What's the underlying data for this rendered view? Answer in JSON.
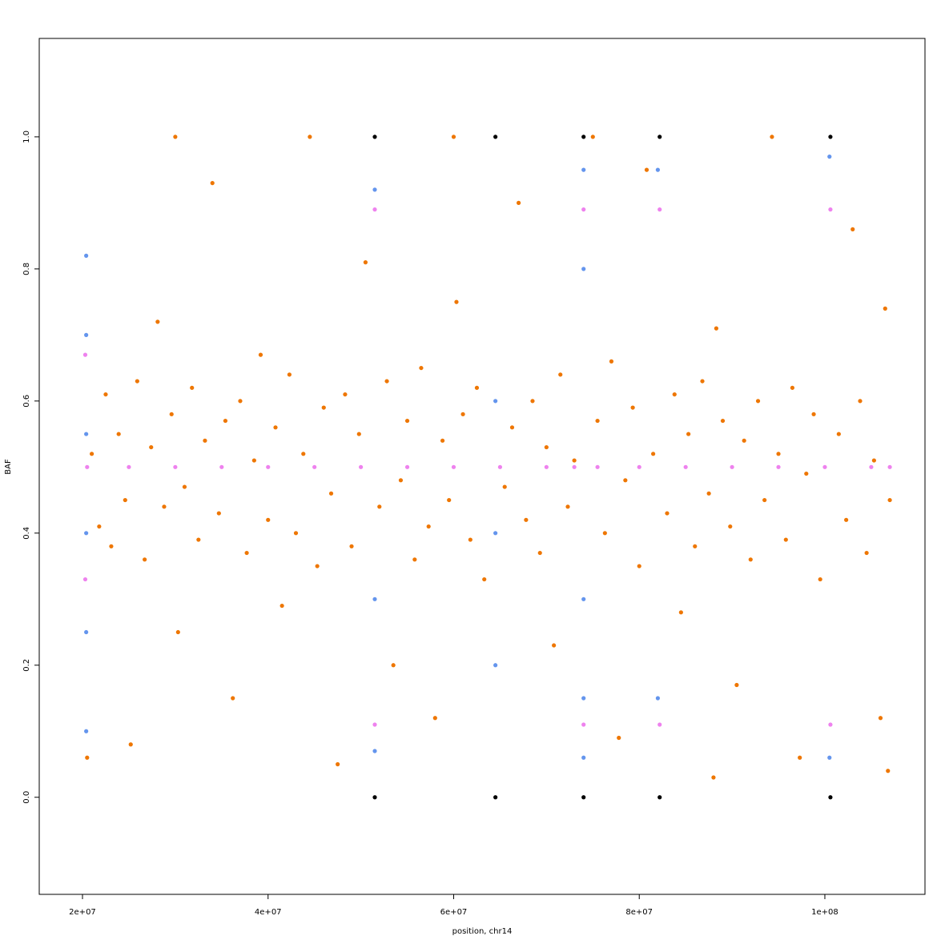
{
  "chart_data": {
    "type": "scatter",
    "x_label": "position, chr14",
    "y_label": "BAF",
    "xlim": [
      15340000,
      110790000
    ],
    "ylim": [
      -0.147,
      1.149
    ],
    "xticks": [
      {
        "value": 20000000,
        "label": "2e+07"
      },
      {
        "value": 40000000,
        "label": "4e+07"
      },
      {
        "value": 60000000,
        "label": "6e+07"
      },
      {
        "value": 80000000,
        "label": "8e+07"
      },
      {
        "value": 100000000,
        "label": "1e+08"
      }
    ],
    "yticks": [
      {
        "value": 0,
        "label": "0.0"
      },
      0.2,
      0.4,
      0.6,
      0.8,
      {
        "value": 1,
        "label": "1.0"
      }
    ],
    "series": [
      {
        "color": "#ee7600",
        "x": [
          21000000,
          21800000,
          22500000,
          23100000,
          23900000,
          24600000,
          25200000,
          25900000,
          26700000,
          27400000,
          28100000,
          28800000,
          29600000,
          30300000,
          31000000,
          31800000,
          32500000,
          33200000,
          34000000,
          34700000,
          35400000,
          36200000,
          37000000,
          37700000,
          38500000,
          39200000,
          40000000,
          40800000,
          41500000,
          42300000,
          43000000,
          43800000,
          44500000,
          45300000,
          46000000,
          46800000,
          47500000,
          48300000,
          49000000,
          49800000,
          50500000,
          52000000,
          52800000,
          53500000,
          54300000,
          55000000,
          55800000,
          56500000,
          57300000,
          58000000,
          58800000,
          59500000,
          60300000,
          61000000,
          61800000,
          62500000,
          63300000,
          65500000,
          66300000,
          67000000,
          67800000,
          68500000,
          69300000,
          70000000,
          70800000,
          71500000,
          72300000,
          73000000,
          75500000,
          76300000,
          77000000,
          77800000,
          78500000,
          79300000,
          80000000,
          80800000,
          81500000,
          83000000,
          83800000,
          84500000,
          85300000,
          86000000,
          86800000,
          87500000,
          88300000,
          89000000,
          89800000,
          90500000,
          91300000,
          92000000,
          92800000,
          93500000,
          94300000,
          95000000,
          95800000,
          96500000,
          97300000,
          98000000,
          98800000,
          99500000,
          101500000,
          102300000,
          103000000,
          103800000,
          104500000,
          105300000,
          106000000,
          106500000,
          106800000,
          107000000,
          20500000,
          30000000,
          60000000,
          75000000,
          88000000
        ],
        "values": [
          0.52,
          0.41,
          0.61,
          0.38,
          0.55,
          0.45,
          0.08,
          0.63,
          0.36,
          0.53,
          0.72,
          0.44,
          0.58,
          0.25,
          0.47,
          0.62,
          0.39,
          0.54,
          0.93,
          0.43,
          0.57,
          0.15,
          0.6,
          0.37,
          0.51,
          0.67,
          0.42,
          0.56,
          0.29,
          0.64,
          0.4,
          0.52,
          1,
          0.35,
          0.59,
          0.46,
          0.05,
          0.61,
          0.38,
          0.55,
          0.81,
          0.44,
          0.63,
          0.2,
          0.48,
          0.57,
          0.36,
          0.65,
          0.41,
          0.12,
          0.54,
          0.45,
          0.75,
          0.58,
          0.39,
          0.62,
          0.33,
          0.47,
          0.56,
          0.9,
          0.42,
          0.6,
          0.37,
          0.53,
          0.23,
          0.64,
          0.44,
          0.51,
          0.57,
          0.4,
          0.66,
          0.09,
          0.48,
          0.59,
          0.35,
          0.95,
          0.52,
          0.43,
          0.61,
          0.28,
          0.55,
          0.38,
          0.63,
          0.46,
          0.71,
          0.57,
          0.41,
          0.17,
          0.54,
          0.36,
          0.6,
          0.45,
          1,
          0.52,
          0.39,
          0.62,
          0.06,
          0.49,
          0.58,
          0.33,
          0.55,
          0.42,
          0.86,
          0.6,
          0.37,
          0.51,
          0.12,
          0.74,
          0.04,
          0.45,
          0.06,
          1,
          1,
          1,
          0.03
        ]
      },
      {
        "color": "#6495ed",
        "x": [
          20400000,
          20400000,
          20400000,
          20400000,
          20400000,
          20400000,
          64500000,
          64500000,
          64500000,
          74000000,
          74000000,
          74000000,
          74000000,
          74000000,
          51500000,
          51500000,
          51500000,
          82000000,
          82000000,
          100500000,
          100500000
        ],
        "values": [
          0.82,
          0.7,
          0.55,
          0.4,
          0.25,
          0.1,
          0.6,
          0.4,
          0.2,
          0.95,
          0.8,
          0.3,
          0.15,
          0.06,
          0.92,
          0.3,
          0.07,
          0.95,
          0.15,
          0.97,
          0.06
        ]
      },
      {
        "color": "#ee82ee",
        "x": [
          20500000,
          25000000,
          30000000,
          35000000,
          40000000,
          45000000,
          50000000,
          55000000,
          60000000,
          65000000,
          70000000,
          73000000,
          75500000,
          80000000,
          85000000,
          90000000,
          95000000,
          100000000,
          105000000,
          107000000,
          51500000,
          74000000,
          82200000,
          100600000,
          51500000,
          74000000,
          82200000,
          100600000,
          20300000,
          20300000
        ],
        "values": [
          0.5,
          0.5,
          0.5,
          0.5,
          0.5,
          0.5,
          0.5,
          0.5,
          0.5,
          0.5,
          0.5,
          0.5,
          0.5,
          0.5,
          0.5,
          0.5,
          0.5,
          0.5,
          0.5,
          0.5,
          0.89,
          0.89,
          0.89,
          0.89,
          0.11,
          0.11,
          0.11,
          0.11,
          0.33,
          0.67
        ]
      },
      {
        "color": "#000000",
        "x": [
          51500000,
          64500000,
          74000000,
          82200000,
          100600000,
          51500000,
          64500000,
          74000000,
          82200000,
          100600000
        ],
        "values": [
          0,
          0,
          0,
          0,
          0,
          1,
          1,
          1,
          1,
          1
        ]
      }
    ]
  }
}
